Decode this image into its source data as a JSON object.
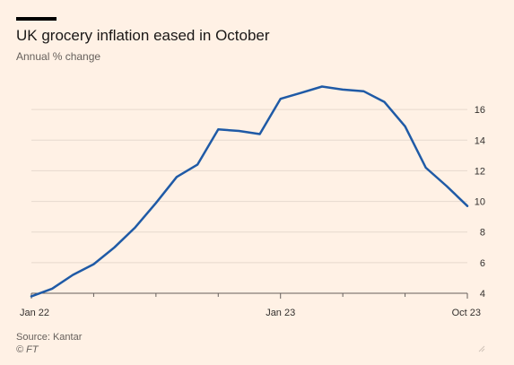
{
  "header": {
    "title": "UK grocery inflation eased in October",
    "subtitle": "Annual % change"
  },
  "footer": {
    "source": "Source: Kantar",
    "credit": "© FT"
  },
  "colors": {
    "line": "#1f5aa6",
    "grid": "#e6d9ce",
    "axis": "#66605c",
    "text": "#33302e"
  },
  "chart_data": {
    "type": "line",
    "title": "UK grocery inflation eased in October",
    "subtitle": "Annual % change",
    "xlabel": "",
    "ylabel": "",
    "ylim": [
      4,
      18
    ],
    "yticks": [
      4,
      6,
      8,
      10,
      12,
      14,
      16
    ],
    "grid": true,
    "y_axis_side": "right",
    "x_tick_labels": [
      {
        "label": "Jan 22",
        "index": 0
      },
      {
        "label": "Jan 23",
        "index": 12
      },
      {
        "label": "Oct 23",
        "index": 21
      }
    ],
    "x": [
      "Jan 22",
      "Feb 22",
      "Mar 22",
      "Apr 22",
      "May 22",
      "Jun 22",
      "Jul 22",
      "Aug 22",
      "Sep 22",
      "Oct 22",
      "Nov 22",
      "Dec 22",
      "Jan 23",
      "Feb 23",
      "Mar 23",
      "Apr 23",
      "May 23",
      "Jun 23",
      "Jul 23",
      "Aug 23",
      "Sep 23",
      "Oct 23"
    ],
    "series": [
      {
        "values": [
          3.8,
          4.3,
          5.2,
          5.9,
          7.0,
          8.3,
          9.9,
          11.6,
          12.4,
          14.7,
          14.6,
          14.4,
          16.7,
          17.1,
          17.5,
          17.3,
          17.2,
          16.5,
          14.9,
          12.2,
          11.0,
          9.7
        ]
      }
    ]
  }
}
